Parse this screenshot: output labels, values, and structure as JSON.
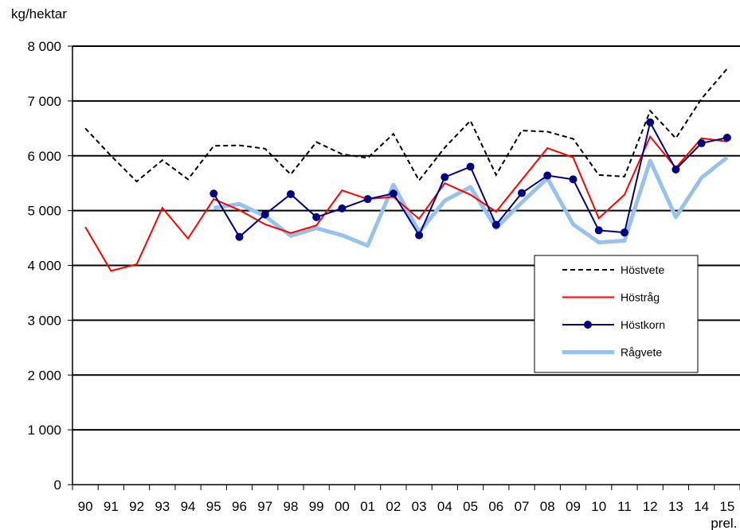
{
  "chart_data": {
    "type": "line",
    "ylabel": "kg/hektar",
    "ylim": [
      0,
      8000
    ],
    "yticks": [
      0,
      1000,
      2000,
      3000,
      4000,
      5000,
      6000,
      7000,
      8000
    ],
    "ytick_labels": [
      "0",
      "1 000",
      "2 000",
      "3 000",
      "4 000",
      "5 000",
      "6 000",
      "7 000",
      "8 000"
    ],
    "categories": [
      "90",
      "91",
      "92",
      "93",
      "94",
      "95",
      "96",
      "97",
      "98",
      "99",
      "00",
      "01",
      "02",
      "03",
      "04",
      "05",
      "06",
      "07",
      "08",
      "09",
      "10",
      "11",
      "12",
      "13",
      "14",
      "15"
    ],
    "last_category_note": "prel.",
    "grid": "horizontal",
    "legend_position": "right",
    "series": [
      {
        "name": "Höstvete",
        "style": "dashed",
        "color": "#000000",
        "values": [
          6500,
          6000,
          5530,
          5920,
          5570,
          6180,
          6190,
          6130,
          5660,
          6250,
          6030,
          5960,
          6400,
          5550,
          6150,
          6640,
          5650,
          6460,
          6440,
          6310,
          5650,
          5620,
          6820,
          6320,
          7040,
          7590
        ]
      },
      {
        "name": "Höstråg",
        "style": "solid",
        "color": "#ff0000",
        "values": [
          4700,
          3900,
          4020,
          5050,
          4490,
          5210,
          5010,
          4750,
          4590,
          4730,
          5370,
          5210,
          5250,
          4850,
          5500,
          5290,
          4980,
          5560,
          6140,
          5970,
          4860,
          5290,
          6350,
          5780,
          6320,
          6260
        ]
      },
      {
        "name": "Höstkorn",
        "style": "marker",
        "color": "#000080",
        "values": [
          null,
          null,
          null,
          null,
          null,
          5310,
          4520,
          4930,
          5300,
          4880,
          5040,
          5210,
          5310,
          4550,
          5610,
          5800,
          4740,
          5320,
          5640,
          5570,
          4640,
          4600,
          6610,
          5750,
          6230,
          6330
        ]
      },
      {
        "name": "Rågvete",
        "style": "thick",
        "color": "#99c2ea",
        "values": [
          null,
          null,
          null,
          null,
          null,
          5050,
          5120,
          4900,
          4540,
          4680,
          4550,
          4360,
          5470,
          4610,
          5180,
          5430,
          4680,
          5150,
          5590,
          4750,
          4420,
          4450,
          5910,
          4880,
          5600,
          5970
        ]
      }
    ]
  }
}
